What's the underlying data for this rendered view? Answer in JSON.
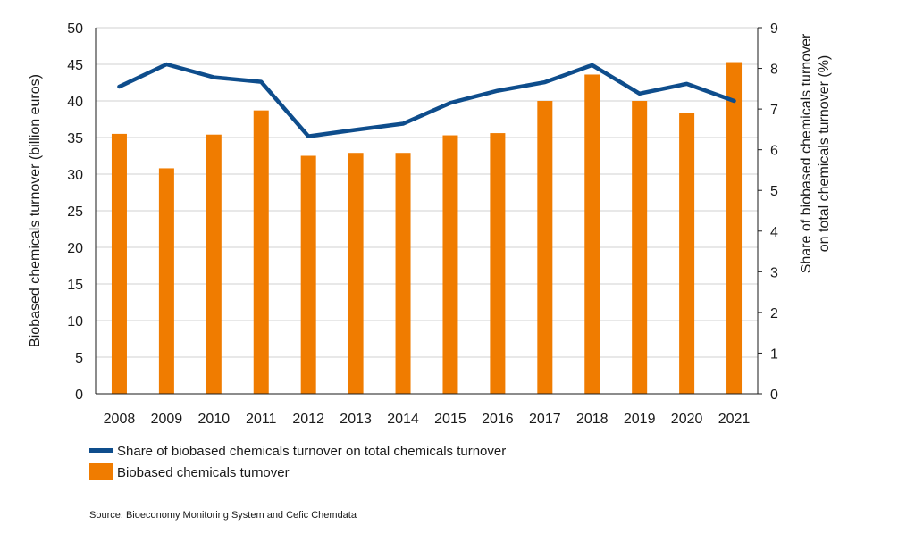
{
  "chart_data": {
    "type": "bar",
    "categories": [
      "2008",
      "2009",
      "2010",
      "2011",
      "2012",
      "2013",
      "2014",
      "2015",
      "2016",
      "2017",
      "2018",
      "2019",
      "2020",
      "2021"
    ],
    "series": [
      {
        "name": "Biobased chemicals turnover",
        "type": "bar",
        "axis": "left",
        "color": "#f07c00",
        "values": [
          35.5,
          30.8,
          35.4,
          38.7,
          32.5,
          32.9,
          32.9,
          35.3,
          35.6,
          40.0,
          43.6,
          40.0,
          38.3,
          45.3
        ]
      },
      {
        "name": "Share of biobased chemicals turnover on total chemicals turnover",
        "type": "line",
        "axis": "right",
        "color": "#0e4d8c",
        "values": [
          7.55,
          8.1,
          7.78,
          7.67,
          6.33,
          6.49,
          6.64,
          7.15,
          7.45,
          7.66,
          8.08,
          7.38,
          7.62,
          7.2
        ]
      }
    ],
    "y_left": {
      "label": "Biobased chemicals turnover (billion euros)",
      "ylim": [
        0,
        50
      ],
      "ticks": [
        "0",
        "5",
        "10",
        "15",
        "20",
        "25",
        "30",
        "35",
        "40",
        "45",
        "50"
      ]
    },
    "y_right": {
      "label_lines": [
        "Share of biobased chemicals turnover",
        "on total chemicals turnover (%)"
      ],
      "ylim": [
        0,
        9
      ],
      "ticks": [
        "0",
        "1",
        "2",
        "3",
        "4",
        "5",
        "6",
        "7",
        "8",
        "9"
      ]
    },
    "grid": true,
    "legend_position": "bottom-left"
  },
  "source": "Source: Bioeconomy Monitoring System and Cefic Chemdata"
}
